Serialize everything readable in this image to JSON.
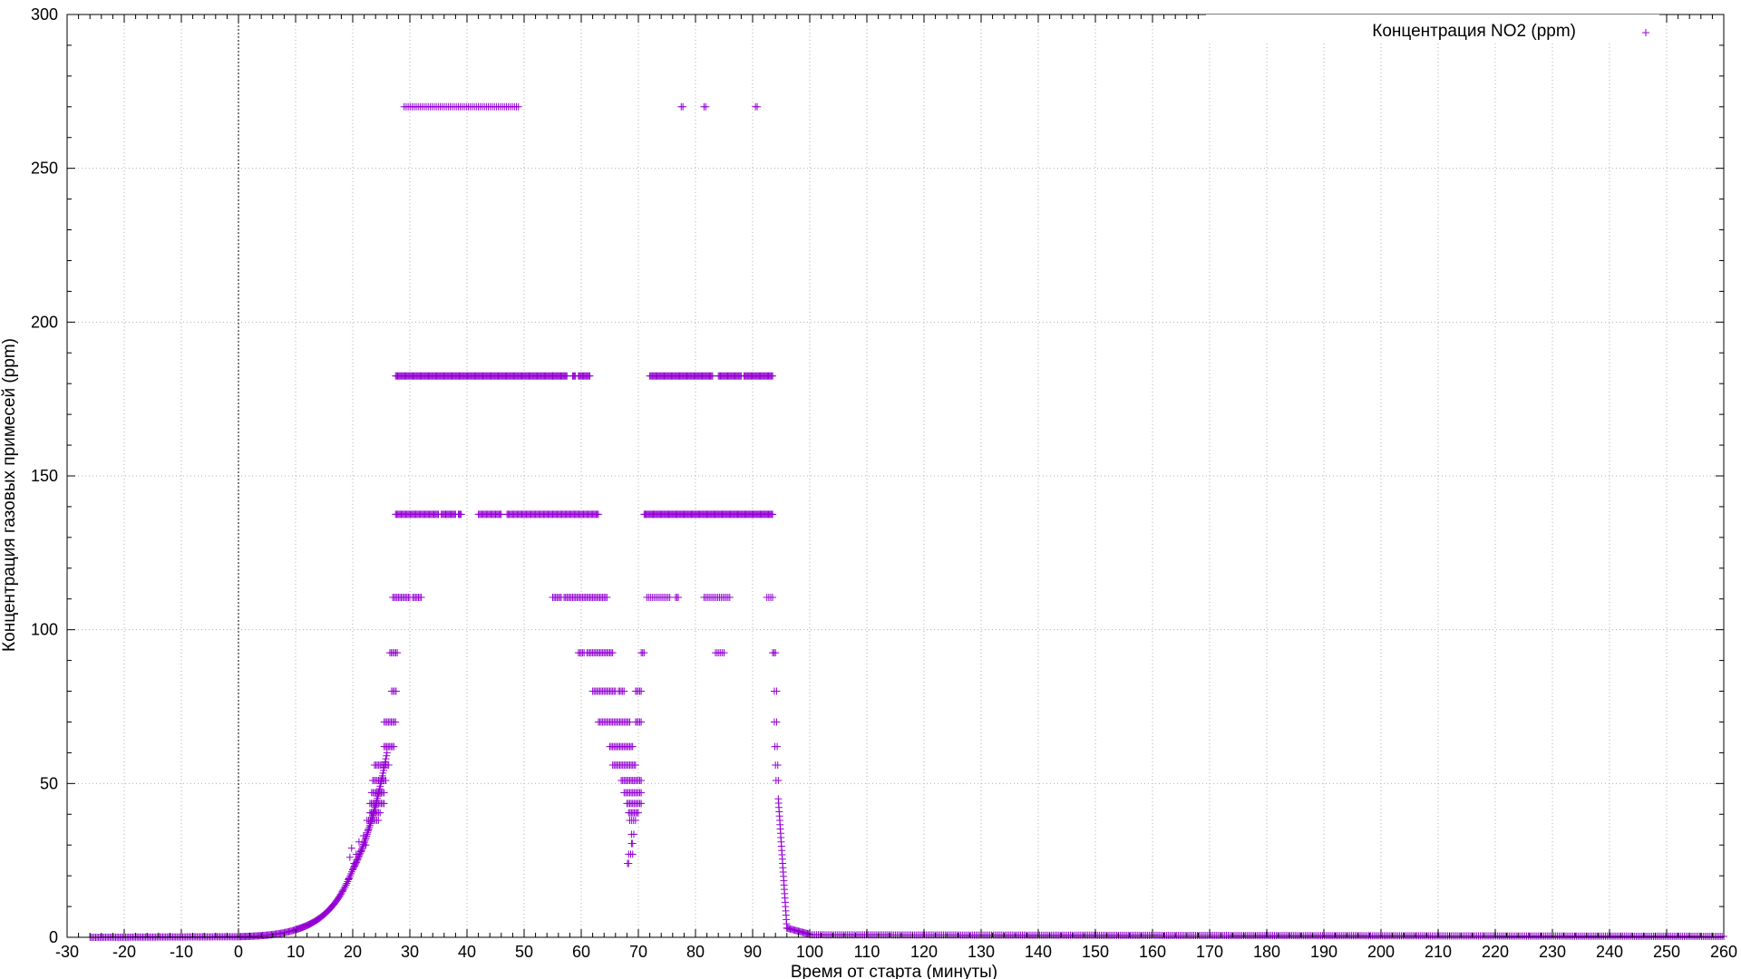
{
  "chart_data": {
    "type": "scatter",
    "title": "",
    "xlabel": "Время от старта (минуты)",
    "ylabel": "Концентрация газовых примесей (ppm)",
    "xlim": [
      -30,
      260
    ],
    "ylim": [
      0,
      300
    ],
    "x_ticks": [
      -30,
      -20,
      -10,
      0,
      10,
      20,
      30,
      40,
      50,
      60,
      70,
      80,
      90,
      100,
      110,
      120,
      130,
      140,
      150,
      160,
      170,
      180,
      190,
      200,
      210,
      220,
      230,
      240,
      250,
      260
    ],
    "y_ticks": [
      0,
      50,
      100,
      150,
      200,
      250,
      300
    ],
    "grid": true,
    "zero_line_x": 0,
    "legend_position": "top-right",
    "marker": "+",
    "series": [
      {
        "name": "Концентрация NO2 (ppm)",
        "color": "#9400d3",
        "segments": [
          {
            "x_start": -26,
            "x_end": 0,
            "step": 0.25,
            "y_start": 0,
            "y_end": 0.2,
            "curve": "linear"
          },
          {
            "x_start": 0,
            "x_end": 10,
            "step": 0.2,
            "y_start": 0.2,
            "y_end": 2.5,
            "curve": "exp"
          },
          {
            "x_start": 10,
            "x_end": 20,
            "step": 0.15,
            "y_start": 2.5,
            "y_end": 22,
            "curve": "exp"
          },
          {
            "x_start": 20,
            "x_end": 26,
            "step": 0.1,
            "y_start": 22,
            "y_end": 60,
            "curve": "exp"
          },
          {
            "x_start": 94.5,
            "x_end": 96,
            "step": 0.05,
            "y_start": 45,
            "y_end": 3,
            "curve": "linear"
          },
          {
            "x_start": 96,
            "x_end": 100,
            "step": 0.2,
            "y_start": 3,
            "y_end": 1,
            "curve": "linear"
          },
          {
            "x_start": 100,
            "x_end": 260,
            "step": 0.3,
            "y_start": 0.8,
            "y_end": 0.3,
            "curve": "linear"
          }
        ],
        "bands": [
          {
            "y": 270,
            "ranges": [
              [
                29,
                49
              ]
            ],
            "density": 0.35
          },
          {
            "y": 270,
            "ranges": [
              [
                77.5,
                77.8
              ],
              [
                81.5,
                81.8
              ],
              [
                90.5,
                90.8
              ]
            ],
            "density": 0.3
          },
          {
            "y": 182.5,
            "ranges": [
              [
                27.5,
                55
              ],
              [
                55,
                57.5
              ],
              [
                58.5,
                59
              ],
              [
                59.5,
                61.5
              ]
            ],
            "density": 0.18
          },
          {
            "y": 182.5,
            "ranges": [
              [
                72,
                83
              ],
              [
                84,
                88
              ],
              [
                88.5,
                93.5
              ]
            ],
            "density": 0.18
          },
          {
            "y": 137.5,
            "ranges": [
              [
                27.5,
                35
              ],
              [
                35.5,
                38
              ],
              [
                38.5,
                39
              ],
              [
                42,
                46
              ],
              [
                47,
                63
              ]
            ],
            "density": 0.2
          },
          {
            "y": 137.5,
            "ranges": [
              [
                71,
                93.5
              ]
            ],
            "density": 0.18
          },
          {
            "y": 110.5,
            "ranges": [
              [
                27,
                30
              ],
              [
                30.5,
                32
              ],
              [
                55,
                56.5
              ],
              [
                57,
                64.5
              ]
            ],
            "density": 0.25
          },
          {
            "y": 110.5,
            "ranges": [
              [
                71.5,
                75.5
              ],
              [
                76.5,
                77
              ],
              [
                81.5,
                86
              ],
              [
                92.5,
                93.5
              ]
            ],
            "density": 0.3
          },
          {
            "y": 92.5,
            "ranges": [
              [
                26.5,
                27.8
              ]
            ],
            "density": 0.25
          },
          {
            "y": 92.5,
            "ranges": [
              [
                59.5,
                60.5
              ],
              [
                61,
                65.5
              ]
            ],
            "density": 0.25
          },
          {
            "y": 92.5,
            "ranges": [
              [
                70.5,
                71
              ],
              [
                83.5,
                85
              ]
            ],
            "density": 0.3
          },
          {
            "y": 92.5,
            "ranges": [
              [
                93.5,
                94
              ]
            ],
            "density": 0.3
          },
          {
            "y": 80,
            "ranges": [
              [
                26.8,
                27.6
              ]
            ],
            "density": 0.25
          },
          {
            "y": 80,
            "ranges": [
              [
                62,
                66
              ],
              [
                66.5,
                67.5
              ],
              [
                69.5,
                70.5
              ]
            ],
            "density": 0.25
          },
          {
            "y": 80,
            "ranges": [
              [
                93.8,
                94.2
              ]
            ],
            "density": 0.3
          },
          {
            "y": 70,
            "ranges": [
              [
                25.5,
                27.5
              ]
            ],
            "density": 0.25
          },
          {
            "y": 70,
            "ranges": [
              [
                63,
                68.5
              ],
              [
                69.5,
                70.5
              ]
            ],
            "density": 0.25
          },
          {
            "y": 70,
            "ranges": [
              [
                93.8,
                94.2
              ]
            ],
            "density": 0.3
          },
          {
            "y": 62,
            "ranges": [
              [
                25.5,
                27.2
              ]
            ],
            "density": 0.25
          },
          {
            "y": 62,
            "ranges": [
              [
                65,
                69
              ]
            ],
            "density": 0.25
          },
          {
            "y": 62,
            "ranges": [
              [
                93.9,
                94.3
              ]
            ],
            "density": 0.3
          },
          {
            "y": 56,
            "ranges": [
              [
                23.8,
                26.3
              ]
            ],
            "density": 0.25
          },
          {
            "y": 56,
            "ranges": [
              [
                65.5,
                69.5
              ]
            ],
            "density": 0.25
          },
          {
            "y": 56,
            "ranges": [
              [
                94,
                94.4
              ]
            ],
            "density": 0.3
          },
          {
            "y": 51,
            "ranges": [
              [
                23.5,
                25.8
              ]
            ],
            "density": 0.25
          },
          {
            "y": 51,
            "ranges": [
              [
                67,
                70.5
              ]
            ],
            "density": 0.25
          },
          {
            "y": 51,
            "ranges": [
              [
                94.1,
                94.5
              ]
            ],
            "density": 0.3
          },
          {
            "y": 47,
            "ranges": [
              [
                23.3,
                25.5
              ]
            ],
            "density": 0.25
          },
          {
            "y": 47,
            "ranges": [
              [
                67.5,
                70.5
              ]
            ],
            "density": 0.25
          },
          {
            "y": 43.5,
            "ranges": [
              [
                23,
                25.5
              ]
            ],
            "density": 0.25
          },
          {
            "y": 43.5,
            "ranges": [
              [
                68,
                70.5
              ]
            ],
            "density": 0.25
          },
          {
            "y": 40.5,
            "ranges": [
              [
                23,
                24.8
              ]
            ],
            "density": 0.25
          },
          {
            "y": 40.5,
            "ranges": [
              [
                68.3,
                70
              ]
            ],
            "density": 0.25
          },
          {
            "y": 38,
            "ranges": [
              [
                22.5,
                24.5
              ]
            ],
            "density": 0.3
          },
          {
            "y": 38,
            "ranges": [
              [
                68.5,
                69.5
              ]
            ],
            "density": 0.3
          },
          {
            "y": 33.5,
            "ranges": [
              [
                68.8,
                69.2
              ]
            ],
            "density": 0.3
          },
          {
            "y": 30.5,
            "ranges": [
              [
                68.8,
                69
              ]
            ],
            "density": 0.3
          },
          {
            "y": 27,
            "ranges": [
              [
                68.3,
                69
              ]
            ],
            "density": 0.3
          },
          {
            "y": 24,
            "ranges": [
              [
                68.1,
                68.3
              ]
            ],
            "density": 0.3
          }
        ],
        "scatter_points": [
          [
            19.5,
            26
          ],
          [
            19.8,
            29
          ],
          [
            20.2,
            24
          ],
          [
            20.6,
            27
          ],
          [
            21.1,
            31
          ],
          [
            21.5,
            28
          ],
          [
            21.9,
            33
          ],
          [
            22.3,
            30
          ],
          [
            22.7,
            35
          ],
          [
            19.3,
            19
          ],
          [
            18.8,
            17
          ],
          [
            18.2,
            15
          ]
        ]
      }
    ]
  }
}
